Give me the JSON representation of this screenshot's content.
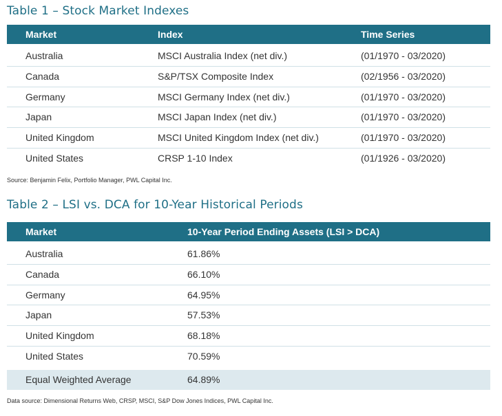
{
  "table1": {
    "title": "Table 1 – Stock Market Indexes",
    "headers": [
      "Market",
      "Index",
      "Time Series"
    ],
    "rows": [
      [
        "Australia",
        "MSCI Australia Index (net div.)",
        "(01/1970 - 03/2020)"
      ],
      [
        "Canada",
        "S&P/TSX Composite Index",
        "(02/1956 - 03/2020)"
      ],
      [
        "Germany",
        "MSCI Germany Index (net div.)",
        "(01/1970 - 03/2020)"
      ],
      [
        "Japan",
        "MSCI Japan Index (net div.)",
        "(01/1970 - 03/2020)"
      ],
      [
        "United Kingdom",
        "MSCI United Kingdom Index (net div.)",
        "(01/1970 - 03/2020)"
      ],
      [
        "United States",
        "CRSP 1-10 Index",
        "(01/1926 - 03/2020)"
      ]
    ],
    "source": "Source: Benjamin Felix, Portfolio Manager, PWL Capital Inc."
  },
  "table2": {
    "title": "Table 2 – LSI vs. DCA for 10-Year Historical Periods",
    "headers": [
      "Market",
      "10-Year Period Ending Assets (LSI > DCA)"
    ],
    "rows": [
      [
        "Australia",
        "61.86%"
      ],
      [
        "Canada",
        "66.10%"
      ],
      [
        "Germany",
        "64.95%"
      ],
      [
        "Japan",
        "57.53%"
      ],
      [
        "United Kingdom",
        "68.18%"
      ],
      [
        "United States",
        "70.59%"
      ]
    ],
    "average": [
      "Equal Weighted Average",
      "64.89%"
    ],
    "source": "Data source: Dimensional Returns Web, CRSP, MSCI, S&P Dow Jones Indices, PWL Capital Inc."
  },
  "colors": {
    "accent": "#1f6f86",
    "highlight_row": "#dde9ee",
    "divider": "#cfe0e6"
  }
}
